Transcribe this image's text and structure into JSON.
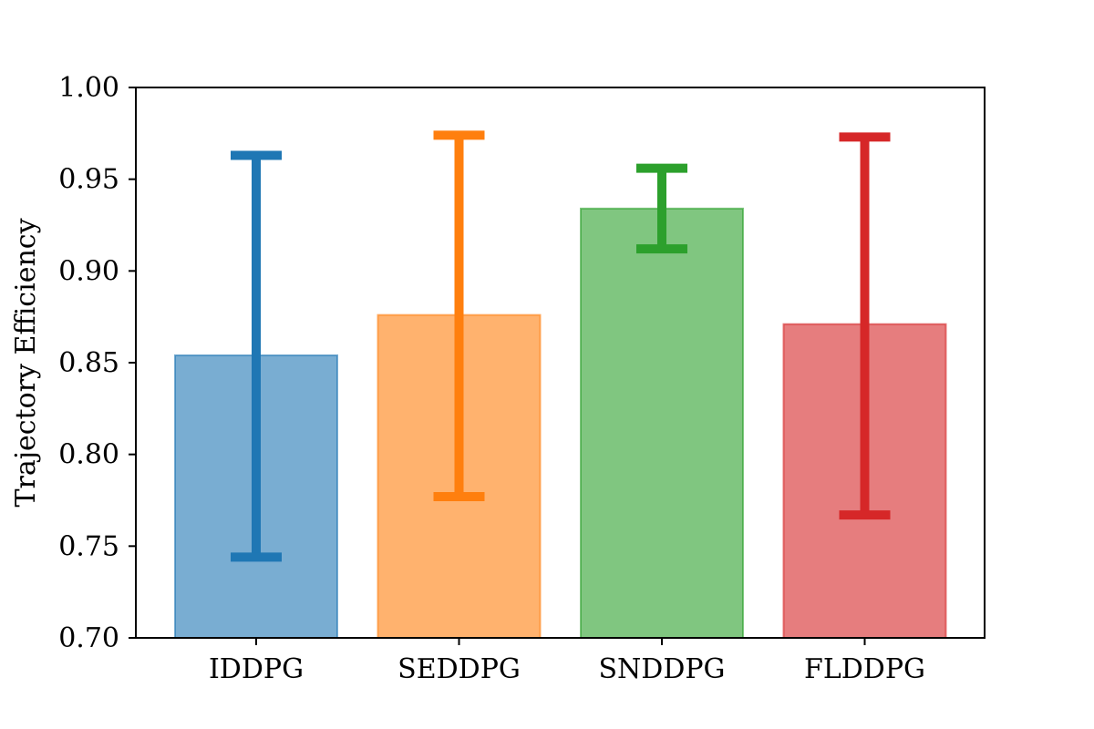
{
  "chart_data": {
    "type": "bar",
    "title": "",
    "xlabel": "",
    "ylabel": "Trajectory Efficiency",
    "categories": [
      "IDDPG",
      "SEDDPG",
      "SNDDPG",
      "FLDDPG"
    ],
    "values": [
      0.854,
      0.876,
      0.934,
      0.871
    ],
    "error_low": [
      0.744,
      0.777,
      0.912,
      0.767
    ],
    "error_high": [
      0.963,
      0.974,
      0.956,
      0.973
    ],
    "ylim": [
      0.7,
      1.0
    ],
    "yticks": [
      "0.70",
      "0.75",
      "0.80",
      "0.85",
      "0.90",
      "0.95",
      "1.00"
    ],
    "grid": false,
    "colors": [
      "#1f77b4",
      "#ff7f0e",
      "#2ca02c",
      "#d62728"
    ]
  }
}
